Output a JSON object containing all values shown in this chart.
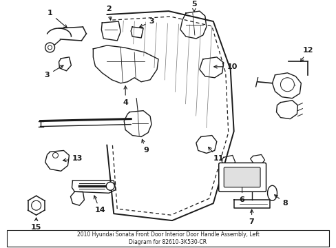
{
  "background_color": "#ffffff",
  "line_color": "#1a1a1a",
  "title": "2010 Hyundai Sonata Front Door Interior Door Handle Assembly, Left\nDiagram for 82610-3K530-CR",
  "title_fontsize": 5.5,
  "fig_w": 4.89,
  "fig_h": 3.6,
  "dpi": 100
}
